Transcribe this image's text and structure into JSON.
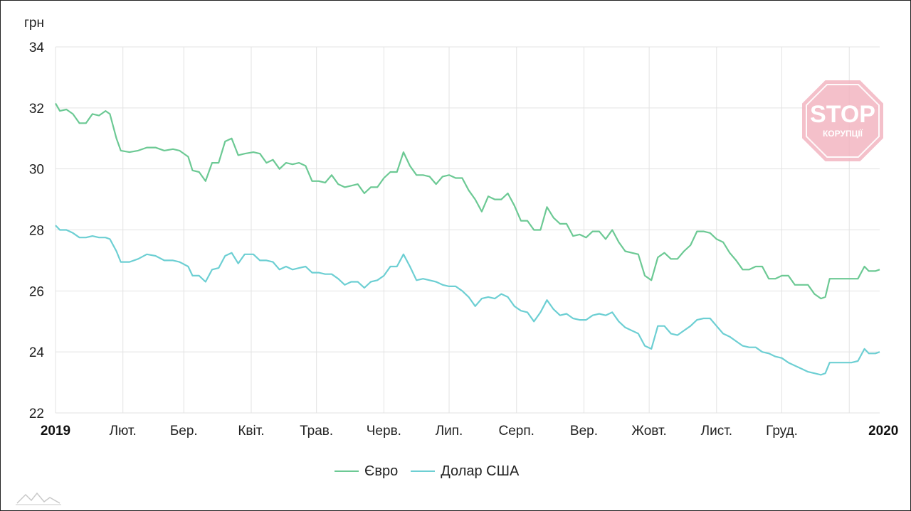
{
  "chart_data": {
    "type": "line",
    "yunit": "грн",
    "ylim": [
      22,
      34
    ],
    "yticks": [
      22,
      24,
      26,
      28,
      30,
      32,
      34
    ],
    "xlim": [
      "2019-01-01",
      "2020-01-15"
    ],
    "xticks": [
      {
        "label": "2019",
        "date": "2019-01-01",
        "bold": true
      },
      {
        "label": "Лют.",
        "date": "2019-02-01",
        "bold": false
      },
      {
        "label": "Бер.",
        "date": "2019-03-01",
        "bold": false
      },
      {
        "label": "Квіт.",
        "date": "2019-04-01",
        "bold": false
      },
      {
        "label": "Трав.",
        "date": "2019-05-01",
        "bold": false
      },
      {
        "label": "Черв.",
        "date": "2019-06-01",
        "bold": false
      },
      {
        "label": "Лип.",
        "date": "2019-07-01",
        "bold": false
      },
      {
        "label": "Серп.",
        "date": "2019-08-01",
        "bold": false
      },
      {
        "label": "Вер.",
        "date": "2019-09-01",
        "bold": false
      },
      {
        "label": "Жовт.",
        "date": "2019-10-01",
        "bold": false
      },
      {
        "label": "Лист.",
        "date": "2019-11-01",
        "bold": false
      },
      {
        "label": "Груд.",
        "date": "2019-12-01",
        "bold": false
      },
      {
        "label": "2020",
        "date": "2020-01-01",
        "bold": true
      }
    ],
    "grid": true,
    "legend_position": "bottom-center",
    "series": [
      {
        "name": "Євро",
        "color": "#6cc994",
        "points": [
          [
            "2019-01-01",
            32.15
          ],
          [
            "2019-01-03",
            31.9
          ],
          [
            "2019-01-06",
            31.95
          ],
          [
            "2019-01-09",
            31.8
          ],
          [
            "2019-01-12",
            31.5
          ],
          [
            "2019-01-15",
            31.5
          ],
          [
            "2019-01-18",
            31.8
          ],
          [
            "2019-01-21",
            31.75
          ],
          [
            "2019-01-24",
            31.9
          ],
          [
            "2019-01-26",
            31.8
          ],
          [
            "2019-01-29",
            31.0
          ],
          [
            "2019-01-31",
            30.6
          ],
          [
            "2019-02-04",
            30.55
          ],
          [
            "2019-02-08",
            30.6
          ],
          [
            "2019-02-12",
            30.7
          ],
          [
            "2019-02-16",
            30.7
          ],
          [
            "2019-02-20",
            30.6
          ],
          [
            "2019-02-24",
            30.65
          ],
          [
            "2019-02-27",
            30.6
          ],
          [
            "2019-03-03",
            30.4
          ],
          [
            "2019-03-05",
            29.95
          ],
          [
            "2019-03-08",
            29.9
          ],
          [
            "2019-03-11",
            29.6
          ],
          [
            "2019-03-14",
            30.2
          ],
          [
            "2019-03-17",
            30.2
          ],
          [
            "2019-03-20",
            30.9
          ],
          [
            "2019-03-23",
            31.0
          ],
          [
            "2019-03-26",
            30.45
          ],
          [
            "2019-03-29",
            30.5
          ],
          [
            "2019-04-02",
            30.55
          ],
          [
            "2019-04-05",
            30.5
          ],
          [
            "2019-04-08",
            30.2
          ],
          [
            "2019-04-11",
            30.3
          ],
          [
            "2019-04-14",
            30.0
          ],
          [
            "2019-04-17",
            30.2
          ],
          [
            "2019-04-20",
            30.15
          ],
          [
            "2019-04-23",
            30.2
          ],
          [
            "2019-04-26",
            30.1
          ],
          [
            "2019-04-29",
            29.6
          ],
          [
            "2019-05-02",
            29.6
          ],
          [
            "2019-05-05",
            29.55
          ],
          [
            "2019-05-08",
            29.8
          ],
          [
            "2019-05-11",
            29.5
          ],
          [
            "2019-05-14",
            29.4
          ],
          [
            "2019-05-17",
            29.45
          ],
          [
            "2019-05-20",
            29.5
          ],
          [
            "2019-05-23",
            29.2
          ],
          [
            "2019-05-26",
            29.4
          ],
          [
            "2019-05-29",
            29.4
          ],
          [
            "2019-06-01",
            29.7
          ],
          [
            "2019-06-04",
            29.9
          ],
          [
            "2019-06-07",
            29.9
          ],
          [
            "2019-06-10",
            30.55
          ],
          [
            "2019-06-13",
            30.1
          ],
          [
            "2019-06-16",
            29.8
          ],
          [
            "2019-06-19",
            29.8
          ],
          [
            "2019-06-22",
            29.75
          ],
          [
            "2019-06-25",
            29.5
          ],
          [
            "2019-06-28",
            29.75
          ],
          [
            "2019-07-01",
            29.8
          ],
          [
            "2019-07-04",
            29.7
          ],
          [
            "2019-07-07",
            29.7
          ],
          [
            "2019-07-10",
            29.3
          ],
          [
            "2019-07-13",
            29.0
          ],
          [
            "2019-07-16",
            28.6
          ],
          [
            "2019-07-19",
            29.1
          ],
          [
            "2019-07-22",
            29.0
          ],
          [
            "2019-07-25",
            29.0
          ],
          [
            "2019-07-28",
            29.2
          ],
          [
            "2019-07-31",
            28.8
          ],
          [
            "2019-08-03",
            28.3
          ],
          [
            "2019-08-06",
            28.3
          ],
          [
            "2019-08-09",
            28.0
          ],
          [
            "2019-08-12",
            28.0
          ],
          [
            "2019-08-15",
            28.75
          ],
          [
            "2019-08-18",
            28.4
          ],
          [
            "2019-08-21",
            28.2
          ],
          [
            "2019-08-24",
            28.2
          ],
          [
            "2019-08-27",
            27.8
          ],
          [
            "2019-08-30",
            27.85
          ],
          [
            "2019-09-02",
            27.75
          ],
          [
            "2019-09-05",
            27.95
          ],
          [
            "2019-09-08",
            27.95
          ],
          [
            "2019-09-11",
            27.7
          ],
          [
            "2019-09-14",
            28.0
          ],
          [
            "2019-09-17",
            27.6
          ],
          [
            "2019-09-20",
            27.3
          ],
          [
            "2019-09-23",
            27.25
          ],
          [
            "2019-09-26",
            27.2
          ],
          [
            "2019-09-29",
            26.5
          ],
          [
            "2019-10-02",
            26.35
          ],
          [
            "2019-10-05",
            27.1
          ],
          [
            "2019-10-08",
            27.25
          ],
          [
            "2019-10-11",
            27.05
          ],
          [
            "2019-10-14",
            27.05
          ],
          [
            "2019-10-17",
            27.3
          ],
          [
            "2019-10-20",
            27.5
          ],
          [
            "2019-10-23",
            27.95
          ],
          [
            "2019-10-26",
            27.95
          ],
          [
            "2019-10-29",
            27.9
          ],
          [
            "2019-11-01",
            27.7
          ],
          [
            "2019-11-04",
            27.6
          ],
          [
            "2019-11-07",
            27.25
          ],
          [
            "2019-11-10",
            27.0
          ],
          [
            "2019-11-13",
            26.7
          ],
          [
            "2019-11-16",
            26.7
          ],
          [
            "2019-11-19",
            26.8
          ],
          [
            "2019-11-22",
            26.8
          ],
          [
            "2019-11-25",
            26.4
          ],
          [
            "2019-11-28",
            26.4
          ],
          [
            "2019-12-01",
            26.5
          ],
          [
            "2019-12-04",
            26.5
          ],
          [
            "2019-12-07",
            26.2
          ],
          [
            "2019-12-10",
            26.2
          ],
          [
            "2019-12-13",
            26.2
          ],
          [
            "2019-12-16",
            25.9
          ],
          [
            "2019-12-19",
            25.75
          ],
          [
            "2019-12-21",
            25.8
          ],
          [
            "2019-12-23",
            26.4
          ],
          [
            "2019-12-26",
            26.4
          ],
          [
            "2019-12-29",
            26.4
          ],
          [
            "2020-01-02",
            26.4
          ],
          [
            "2020-01-05",
            26.4
          ],
          [
            "2020-01-08",
            26.8
          ],
          [
            "2020-01-10",
            26.65
          ],
          [
            "2020-01-13",
            26.65
          ],
          [
            "2020-01-15",
            26.7
          ]
        ]
      },
      {
        "name": "Долар США",
        "color": "#6dcfd3",
        "points": [
          [
            "2019-01-01",
            28.15
          ],
          [
            "2019-01-03",
            28.0
          ],
          [
            "2019-01-06",
            28.0
          ],
          [
            "2019-01-09",
            27.9
          ],
          [
            "2019-01-12",
            27.75
          ],
          [
            "2019-01-15",
            27.75
          ],
          [
            "2019-01-18",
            27.8
          ],
          [
            "2019-01-21",
            27.75
          ],
          [
            "2019-01-24",
            27.75
          ],
          [
            "2019-01-26",
            27.7
          ],
          [
            "2019-01-29",
            27.3
          ],
          [
            "2019-01-31",
            26.95
          ],
          [
            "2019-02-04",
            26.95
          ],
          [
            "2019-02-08",
            27.05
          ],
          [
            "2019-02-12",
            27.2
          ],
          [
            "2019-02-16",
            27.15
          ],
          [
            "2019-02-20",
            27.0
          ],
          [
            "2019-02-24",
            27.0
          ],
          [
            "2019-02-27",
            26.95
          ],
          [
            "2019-03-03",
            26.8
          ],
          [
            "2019-03-05",
            26.5
          ],
          [
            "2019-03-08",
            26.5
          ],
          [
            "2019-03-11",
            26.3
          ],
          [
            "2019-03-14",
            26.7
          ],
          [
            "2019-03-17",
            26.75
          ],
          [
            "2019-03-20",
            27.15
          ],
          [
            "2019-03-23",
            27.25
          ],
          [
            "2019-03-26",
            26.9
          ],
          [
            "2019-03-29",
            27.2
          ],
          [
            "2019-04-02",
            27.2
          ],
          [
            "2019-04-05",
            27.0
          ],
          [
            "2019-04-08",
            27.0
          ],
          [
            "2019-04-11",
            26.95
          ],
          [
            "2019-04-14",
            26.7
          ],
          [
            "2019-04-17",
            26.8
          ],
          [
            "2019-04-20",
            26.7
          ],
          [
            "2019-04-23",
            26.75
          ],
          [
            "2019-04-26",
            26.8
          ],
          [
            "2019-04-29",
            26.6
          ],
          [
            "2019-05-02",
            26.6
          ],
          [
            "2019-05-05",
            26.55
          ],
          [
            "2019-05-08",
            26.55
          ],
          [
            "2019-05-11",
            26.4
          ],
          [
            "2019-05-14",
            26.2
          ],
          [
            "2019-05-17",
            26.3
          ],
          [
            "2019-05-20",
            26.3
          ],
          [
            "2019-05-23",
            26.1
          ],
          [
            "2019-05-26",
            26.3
          ],
          [
            "2019-05-29",
            26.35
          ],
          [
            "2019-06-01",
            26.5
          ],
          [
            "2019-06-04",
            26.8
          ],
          [
            "2019-06-07",
            26.8
          ],
          [
            "2019-06-10",
            27.2
          ],
          [
            "2019-06-13",
            26.8
          ],
          [
            "2019-06-16",
            26.35
          ],
          [
            "2019-06-19",
            26.4
          ],
          [
            "2019-06-22",
            26.35
          ],
          [
            "2019-06-25",
            26.3
          ],
          [
            "2019-06-28",
            26.2
          ],
          [
            "2019-07-01",
            26.15
          ],
          [
            "2019-07-04",
            26.15
          ],
          [
            "2019-07-07",
            26.0
          ],
          [
            "2019-07-10",
            25.8
          ],
          [
            "2019-07-13",
            25.5
          ],
          [
            "2019-07-16",
            25.75
          ],
          [
            "2019-07-19",
            25.8
          ],
          [
            "2019-07-22",
            25.75
          ],
          [
            "2019-07-25",
            25.9
          ],
          [
            "2019-07-28",
            25.8
          ],
          [
            "2019-07-31",
            25.5
          ],
          [
            "2019-08-03",
            25.35
          ],
          [
            "2019-08-06",
            25.3
          ],
          [
            "2019-08-09",
            25.0
          ],
          [
            "2019-08-12",
            25.3
          ],
          [
            "2019-08-15",
            25.7
          ],
          [
            "2019-08-18",
            25.4
          ],
          [
            "2019-08-21",
            25.2
          ],
          [
            "2019-08-24",
            25.25
          ],
          [
            "2019-08-27",
            25.1
          ],
          [
            "2019-08-30",
            25.05
          ],
          [
            "2019-09-02",
            25.05
          ],
          [
            "2019-09-05",
            25.2
          ],
          [
            "2019-09-08",
            25.25
          ],
          [
            "2019-09-11",
            25.2
          ],
          [
            "2019-09-14",
            25.3
          ],
          [
            "2019-09-17",
            25.0
          ],
          [
            "2019-09-20",
            24.8
          ],
          [
            "2019-09-23",
            24.7
          ],
          [
            "2019-09-26",
            24.6
          ],
          [
            "2019-09-29",
            24.2
          ],
          [
            "2019-10-02",
            24.1
          ],
          [
            "2019-10-05",
            24.85
          ],
          [
            "2019-10-08",
            24.85
          ],
          [
            "2019-10-11",
            24.6
          ],
          [
            "2019-10-14",
            24.55
          ],
          [
            "2019-10-17",
            24.7
          ],
          [
            "2019-10-20",
            24.85
          ],
          [
            "2019-10-23",
            25.05
          ],
          [
            "2019-10-26",
            25.1
          ],
          [
            "2019-10-29",
            25.1
          ],
          [
            "2019-11-01",
            24.85
          ],
          [
            "2019-11-04",
            24.6
          ],
          [
            "2019-11-07",
            24.5
          ],
          [
            "2019-11-10",
            24.35
          ],
          [
            "2019-11-13",
            24.2
          ],
          [
            "2019-11-16",
            24.15
          ],
          [
            "2019-11-19",
            24.15
          ],
          [
            "2019-11-22",
            24.0
          ],
          [
            "2019-11-25",
            23.95
          ],
          [
            "2019-11-28",
            23.85
          ],
          [
            "2019-12-01",
            23.8
          ],
          [
            "2019-12-04",
            23.65
          ],
          [
            "2019-12-07",
            23.55
          ],
          [
            "2019-12-10",
            23.45
          ],
          [
            "2019-12-13",
            23.35
          ],
          [
            "2019-12-16",
            23.3
          ],
          [
            "2019-12-19",
            23.25
          ],
          [
            "2019-12-21",
            23.3
          ],
          [
            "2019-12-23",
            23.65
          ],
          [
            "2019-12-26",
            23.65
          ],
          [
            "2019-12-29",
            23.65
          ],
          [
            "2020-01-02",
            23.65
          ],
          [
            "2020-01-05",
            23.7
          ],
          [
            "2020-01-08",
            24.1
          ],
          [
            "2020-01-10",
            23.95
          ],
          [
            "2020-01-13",
            23.95
          ],
          [
            "2020-01-15",
            24.0
          ]
        ]
      }
    ]
  },
  "watermark": {
    "stop_text": "STOP",
    "sub_text": "КОРУПЦІЇ",
    "color": "#f3b6c1"
  },
  "logo": {
    "icon": "mountain-line-icon",
    "color": "#c8c8c8"
  }
}
